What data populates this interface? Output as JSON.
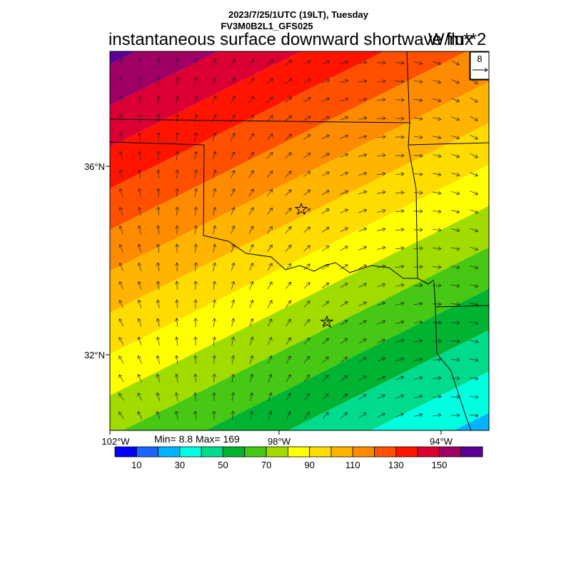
{
  "header": {
    "datetime": "2023/7/25/1UTC (19LT), Tuesday",
    "model": "FV3M0B2L1_GFS025",
    "title": "instantaneous surface downward shortwave flux",
    "units": "W/m**2"
  },
  "map": {
    "lat_labels": [
      "36°N",
      "32°N"
    ],
    "lon_labels": [
      "102°W",
      "98°W",
      "94°W"
    ],
    "vector_ref": "8",
    "markers": [
      "star",
      "star"
    ]
  },
  "stats": {
    "text": "Min= 8.8 Max= 169"
  },
  "colorbar": {
    "colors": [
      "#0000ff",
      "#1e64ff",
      "#00b4ff",
      "#00ffe1",
      "#00dc8c",
      "#00b432",
      "#46c814",
      "#a0dc00",
      "#ffff00",
      "#ffdc00",
      "#ffb400",
      "#ff8c00",
      "#ff5000",
      "#ff1400",
      "#dc0032",
      "#a00064",
      "#5a0096"
    ],
    "labels": [
      "10",
      "30",
      "50",
      "70",
      "90",
      "110",
      "130",
      "150"
    ]
  }
}
